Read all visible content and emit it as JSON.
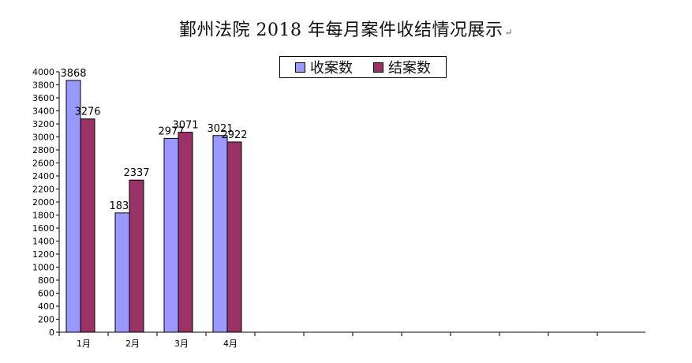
{
  "title": "鄞州法院 2018 年每月案件收结情况展示",
  "title_mark": "↵",
  "colors": {
    "received": "#9999ff",
    "closed": "#993366"
  },
  "chart_data": {
    "type": "bar",
    "title": "鄞州法院 2018 年每月案件收结情况展示",
    "categories": [
      "1月",
      "2月",
      "3月",
      "4月"
    ],
    "series": [
      {
        "name": "收案数",
        "values": [
          3868,
          1832,
          2977,
          3021
        ]
      },
      {
        "name": "结案数",
        "values": [
          3276,
          2337,
          3071,
          2922
        ]
      }
    ],
    "ylim": [
      0,
      4000
    ],
    "ytick_step": 200,
    "data_labels": true,
    "legend_position": "top-center",
    "grid": false,
    "xlabel": "",
    "ylabel": ""
  }
}
